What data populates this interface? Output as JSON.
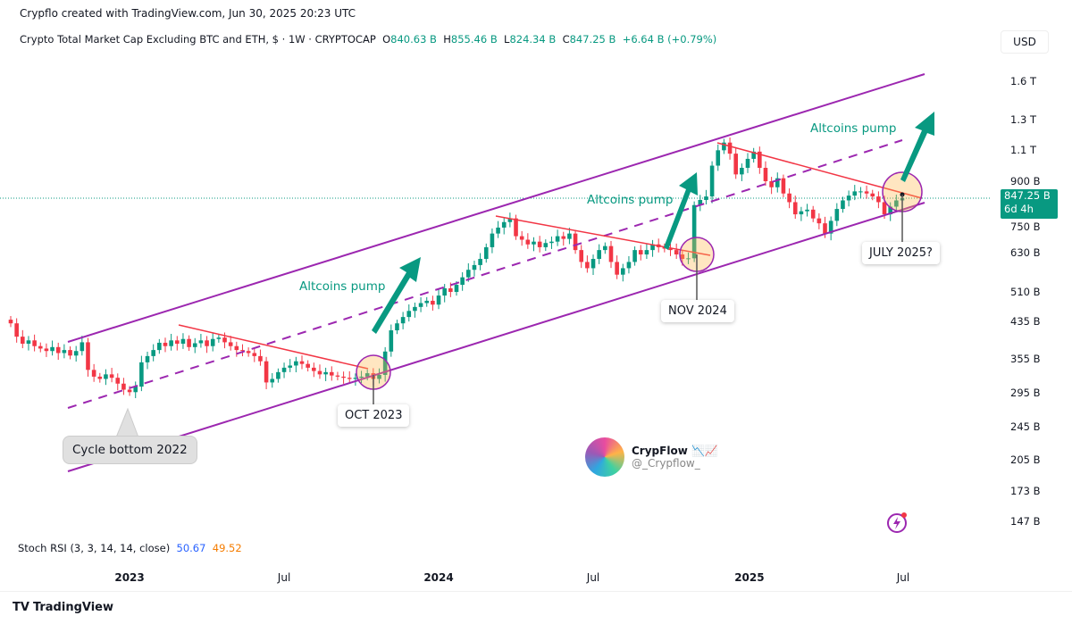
{
  "header": {
    "credit": "Crypflo created with TradingView.com, Jun 30, 2025 20:23 UTC"
  },
  "legend": {
    "title": "Crypto Total Market Cap Excluding BTC and ETH, $ · 1W · CRYPTOCAP",
    "o_label": "O",
    "o": "840.63 B",
    "h_label": "H",
    "h": "855.46 B",
    "l_label": "L",
    "l": "824.34 B",
    "c_label": "C",
    "c": "847.25 B",
    "change": "+6.64 B (+0.79%)"
  },
  "currency": "USD",
  "price_label": {
    "value": "847.25 B",
    "countdown": "6d 4h"
  },
  "indicator": {
    "name": "Stoch RSI (3, 3, 14, 14, close)",
    "k": "50.67",
    "d": "49.52"
  },
  "annotations": {
    "cycle_bottom": "Cycle bottom 2022",
    "oct": "OCT 2023",
    "nov": "NOV 2024",
    "july": "JULY 2025?",
    "pump": "Altcoins pump"
  },
  "watermark": {
    "name": "CrypFlow",
    "handle": "@_Crypflow_"
  },
  "footer": {
    "brand": "TradingView"
  },
  "colors": {
    "up": "#089981",
    "down": "#f23645",
    "channel": "#9c27b0",
    "trend": "#f23645",
    "arrow": "#089981"
  },
  "chart_data": {
    "type": "candlestick",
    "scale": "log",
    "interval": "1W",
    "x_range": [
      "2022-08-15",
      "2025-06-30"
    ],
    "x_ticks": [
      "2023",
      "Jul",
      "2024",
      "Jul",
      "2025",
      "Jul"
    ],
    "y_ticks": [
      "1.6 T",
      "1.3 T",
      "1.1 T",
      "900 B",
      "750 B",
      "630 B",
      "510 B",
      "435 B",
      "355 B",
      "295 B",
      "245 B",
      "205 B",
      "173 B",
      "147 B"
    ],
    "y_unit": "B",
    "closes": [
      430,
      400,
      385,
      392,
      380,
      375,
      370,
      378,
      366,
      372,
      361,
      370,
      388,
      334,
      322,
      318,
      326,
      320,
      310,
      300,
      296,
      305,
      348,
      360,
      372,
      387,
      380,
      392,
      385,
      395,
      378,
      386,
      392,
      380,
      395,
      398,
      388,
      380,
      372,
      370,
      366,
      360,
      350,
      312,
      318,
      330,
      338,
      342,
      350,
      345,
      338,
      332,
      326,
      330,
      324,
      322,
      320,
      318,
      320,
      322,
      328,
      318,
      325,
      369,
      414,
      430,
      445,
      460,
      470,
      480,
      486,
      476,
      500,
      520,
      510,
      530,
      552,
      575,
      590,
      610,
      650,
      700,
      723,
      745,
      760,
      690,
      677,
      660,
      670,
      650,
      665,
      670,
      690,
      680,
      700,
      640,
      600,
      580,
      610,
      640,
      654,
      600,
      560,
      580,
      600,
      640,
      625,
      640,
      660,
      650,
      645,
      640,
      625,
      610,
      612,
      817,
      840,
      856,
      1012,
      1100,
      1147,
      1080,
      965,
      1000,
      1050,
      1092,
      1000,
      930,
      900,
      945,
      870,
      830,
      777,
      790,
      797,
      760,
      740,
      700,
      750,
      800,
      838,
      860,
      880,
      880,
      870,
      856,
      830,
      777,
      810,
      838,
      847
    ]
  }
}
